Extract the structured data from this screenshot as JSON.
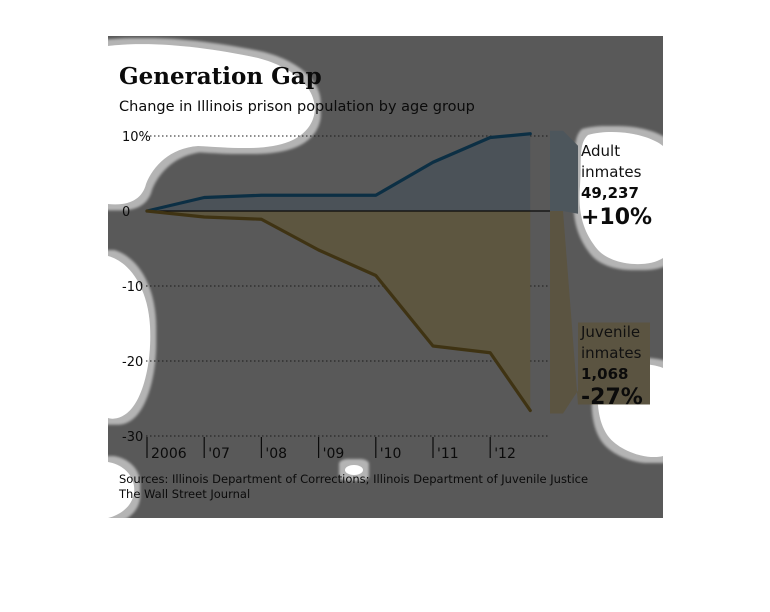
{
  "chart_data": {
    "type": "area",
    "title": "Generation Gap",
    "subtitle": "Change in Illinois prison population by age group",
    "ylim": [
      -30,
      10
    ],
    "yticks": [
      10,
      0,
      -10,
      -20,
      -30
    ],
    "ytick_labels": [
      "10%",
      "0",
      "-10",
      "-20",
      "-30"
    ],
    "x_ticks": [
      2006,
      2007,
      2008,
      2009,
      2010,
      2011,
      2012
    ],
    "x_tick_labels": [
      "2006",
      "'07",
      "'08",
      "'09",
      "'10",
      "'11",
      "'12"
    ],
    "grid": true,
    "series": [
      {
        "name": "Adult inmates",
        "color": "#0c2f44",
        "fill": "#4b5258",
        "x": [
          2006,
          2007,
          2008,
          2009,
          2010,
          2011,
          2012,
          2012.7
        ],
        "values": [
          0,
          1.8,
          2.1,
          2.1,
          2.1,
          6.5,
          9.8,
          10.3
        ],
        "count": "49,237",
        "change": "+10%"
      },
      {
        "name": "Juvenile inmates",
        "color": "#3f3313",
        "fill": "#5d5640",
        "x": [
          2006,
          2007,
          2008,
          2009,
          2010,
          2011,
          2012,
          2012.7
        ],
        "values": [
          0,
          -0.8,
          -1.1,
          -5.2,
          -8.6,
          -18.0,
          -18.9,
          -26.6
        ],
        "count": "1,068",
        "change": "-27%"
      }
    ],
    "annotations": {
      "adult": {
        "line1": "Adult",
        "line2": "inmates",
        "count": "49,237",
        "change": "+10%"
      },
      "juvenile": {
        "line1": "Juvenile",
        "line2": "inmates",
        "count": "1,068",
        "change": "-27%"
      }
    },
    "source": "Sources: Illinois Department of Corrections; Illinois Department of Juvenile Justice",
    "credit": "The Wall Street Journal"
  },
  "colors": {
    "background": "#595959",
    "blob": "#ffffff",
    "blob_edge": "#b4b4b4",
    "gridline": "#1a1a1a",
    "baseline": "#0b0b0b",
    "adult_tag": "#4d565c",
    "juvenile_tag": "#5b5441"
  }
}
